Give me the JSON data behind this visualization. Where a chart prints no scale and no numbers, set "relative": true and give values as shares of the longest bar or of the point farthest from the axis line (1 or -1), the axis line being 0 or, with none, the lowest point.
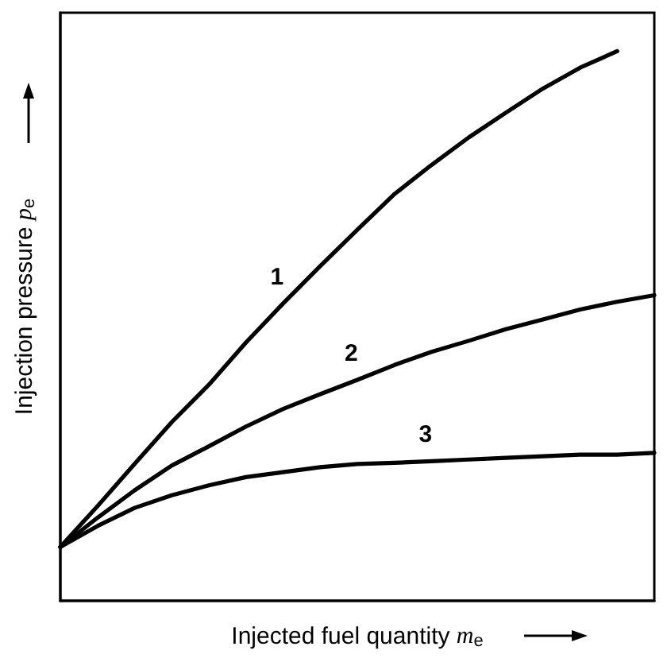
{
  "chart_data": {
    "type": "line",
    "relative": true,
    "xlabel": "Injected fuel quantity m$_{e}$",
    "ylabel": "Injection pressure p$_{e}$",
    "categories": [
      null,
      null,
      null,
      null,
      null,
      null,
      null,
      null,
      null,
      null,
      null,
      null,
      null,
      null,
      null,
      null,
      null
    ],
    "series": [
      {
        "name": "1",
        "color": "#000000",
        "values": [
          0.098,
          0.172,
          0.249,
          0.325,
          0.393,
          0.47,
          0.541,
          0.609,
          0.675,
          0.74,
          0.793,
          0.843,
          0.888,
          0.932,
          0.97,
          1.0,
          null
        ]
      },
      {
        "name": "2",
        "color": "#000000",
        "values": [
          0.098,
          0.151,
          0.201,
          0.246,
          0.281,
          0.317,
          0.349,
          0.376,
          0.402,
          0.429,
          0.453,
          0.473,
          0.494,
          0.512,
          0.53,
          0.544,
          0.556
        ]
      },
      {
        "name": "3",
        "color": "#000000",
        "values": [
          0.098,
          0.136,
          0.169,
          0.192,
          0.21,
          0.225,
          0.234,
          0.243,
          0.249,
          0.251,
          0.254,
          0.257,
          0.26,
          0.263,
          0.266,
          0.266,
          0.269
        ]
      }
    ],
    "legend": false,
    "grid": false,
    "marker": "none",
    "line_style": "solid"
  }
}
